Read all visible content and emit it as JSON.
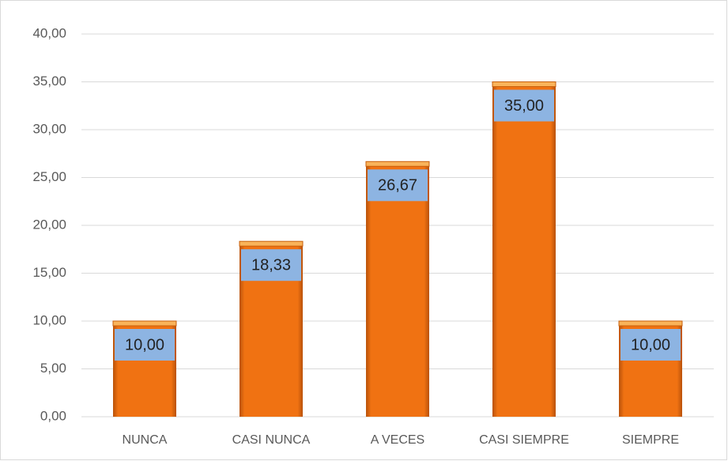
{
  "chart_data": {
    "type": "bar",
    "categories": [
      "NUNCA",
      "CASI NUNCA",
      "A VECES",
      "CASI SIEMPRE",
      "SIEMPRE"
    ],
    "values": [
      10,
      18.33,
      26.67,
      35,
      10
    ],
    "value_labels": [
      "10,00",
      "18,33",
      "26,67",
      "35,00",
      "10,00"
    ],
    "color": "#f07212",
    "ylim": [
      0,
      40
    ],
    "yticks": [
      {
        "value": 0,
        "label": "0,00"
      },
      {
        "value": 5,
        "label": "5,00"
      },
      {
        "value": 10,
        "label": "10,00"
      },
      {
        "value": 15,
        "label": "15,00"
      },
      {
        "value": 20,
        "label": "20,00"
      },
      {
        "value": 25,
        "label": "25,00"
      },
      {
        "value": 30,
        "label": "30,00"
      },
      {
        "value": 35,
        "label": "35,00"
      },
      {
        "value": 40,
        "label": "40,00"
      }
    ],
    "grid": true
  }
}
